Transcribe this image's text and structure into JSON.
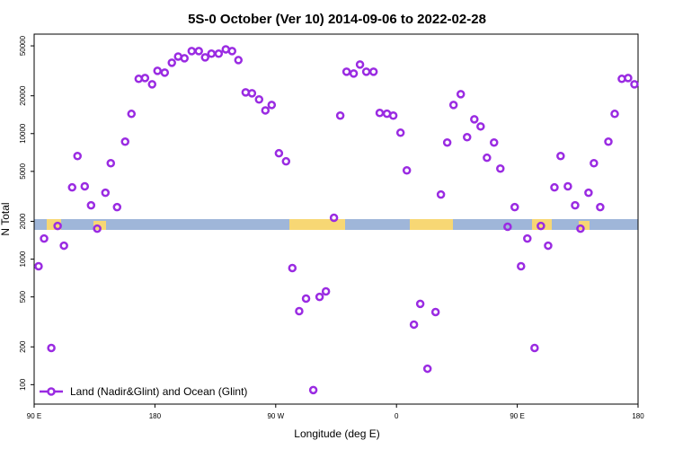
{
  "chart_data": {
    "type": "scatter",
    "title": "5S-0 October (Ver 10)   2014-09-06 to 2022-02-28",
    "x_label": "Longitude (deg E)",
    "y_label": "N Total",
    "xlim": [
      90,
      540
    ],
    "xticks": [
      {
        "value": 90,
        "label": "90 E"
      },
      180,
      {
        "value": 270,
        "label": "90 W"
      },
      {
        "value": 360,
        "label": "0"
      },
      {
        "value": 450,
        "label": "90 E"
      },
      {
        "value": 540,
        "label": "180"
      }
    ],
    "ylim": [
      70,
      62000
    ],
    "yticks": [
      100,
      200,
      500,
      1000,
      2000,
      5000,
      10000,
      20000,
      50000
    ],
    "y_log": true,
    "legend_position": "lower left",
    "x": [
      93.3,
      97.4,
      102.8,
      107.5,
      112.2,
      118.3,
      122.3,
      127.7,
      132.4,
      137.0,
      143.1,
      147.1,
      151.8,
      157.8,
      162.5,
      167.9,
      172.6,
      177.9,
      181.9,
      187.3,
      192.6,
      197.3,
      202.0,
      207.4,
      212.7,
      217.4,
      222.1,
      227.5,
      232.8,
      237.5,
      242.2,
      247.6,
      252.3,
      257.6,
      262.3,
      267.0,
      272.4,
      277.7,
      282.4,
      287.5,
      292.6,
      298.0,
      302.7,
      307.4,
      313.4,
      318.1,
      322.8,
      328.1,
      332.8,
      337.5,
      342.9,
      347.5,
      352.9,
      357.6,
      363.0,
      367.7,
      373.0,
      377.7,
      383.1,
      389.1,
      393.1,
      397.8,
      402.5,
      407.9,
      412.6,
      418.0,
      422.7,
      427.4,
      432.7,
      437.4,
      442.8,
      448.1,
      452.8,
      457.5,
      462.9,
      467.6,
      473.0,
      477.7,
      482.3,
      487.7,
      493.1,
      497.1,
      503.1,
      507.1,
      511.8,
      517.9,
      522.6,
      527.9,
      532.6,
      537.3
    ],
    "series": [
      {
        "name": "Land (Nadir&Glint) and Ocean (Glint)",
        "color": "#9a2be2",
        "values": [
          877,
          1459,
          196,
          1837,
          1280,
          3727,
          6627,
          3800,
          2683,
          1750,
          3378,
          5810,
          2595,
          8620,
          14360,
          27300,
          27700,
          24700,
          31600,
          30600,
          36700,
          41100,
          39800,
          45400,
          45400,
          40500,
          43300,
          43300,
          46900,
          45400,
          38500,
          21300,
          20950,
          18700,
          15300,
          16900,
          6970,
          6010,
          849,
          385,
          485,
          90.6,
          500,
          553,
          2134,
          13900,
          31100,
          30100,
          35500,
          31100,
          31100,
          14600,
          14400,
          13900,
          10160,
          5090,
          301,
          440,
          134,
          379,
          3270,
          8490,
          16900,
          20600,
          9360,
          13000,
          11400,
          6420,
          8490,
          5260,
          1810,
          2595,
          877,
          1459,
          196,
          1837,
          1280,
          3727,
          6627,
          3800,
          2683,
          1750,
          3378,
          5810,
          2595,
          8620,
          14360,
          27300,
          27700,
          24700
        ]
      }
    ]
  }
}
